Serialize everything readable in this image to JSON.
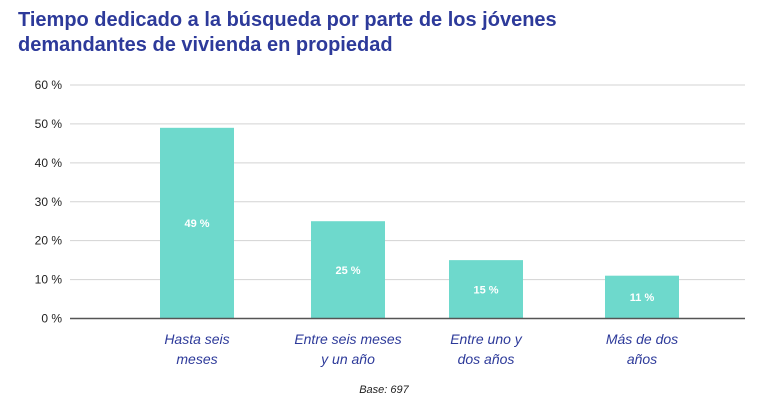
{
  "chart_data": {
    "type": "bar",
    "title": "Tiempo dedicado a la búsqueda por parte de los jóvenes demandantes de vivienda en propiedad",
    "categories": [
      [
        "Hasta seis",
        "meses"
      ],
      [
        "Entre seis meses",
        "y un año"
      ],
      [
        "Entre uno y",
        "dos años"
      ],
      [
        "Más de dos",
        "años"
      ]
    ],
    "values": [
      49,
      25,
      15,
      11
    ],
    "value_labels": [
      "49 %",
      "25 %",
      "15 %",
      "11 %"
    ],
    "yticks": [
      0,
      10,
      20,
      30,
      40,
      50,
      60
    ],
    "ytick_labels": [
      "0 %",
      "10 %",
      "20 %",
      "30 %",
      "40 %",
      "50 %",
      "60 %"
    ],
    "ylim": [
      0,
      60
    ],
    "xlabel": "",
    "ylabel": "",
    "grid": true,
    "bar_color": "#6ed9cc",
    "title_color": "#2d3a9a",
    "note": "Base: 697"
  }
}
